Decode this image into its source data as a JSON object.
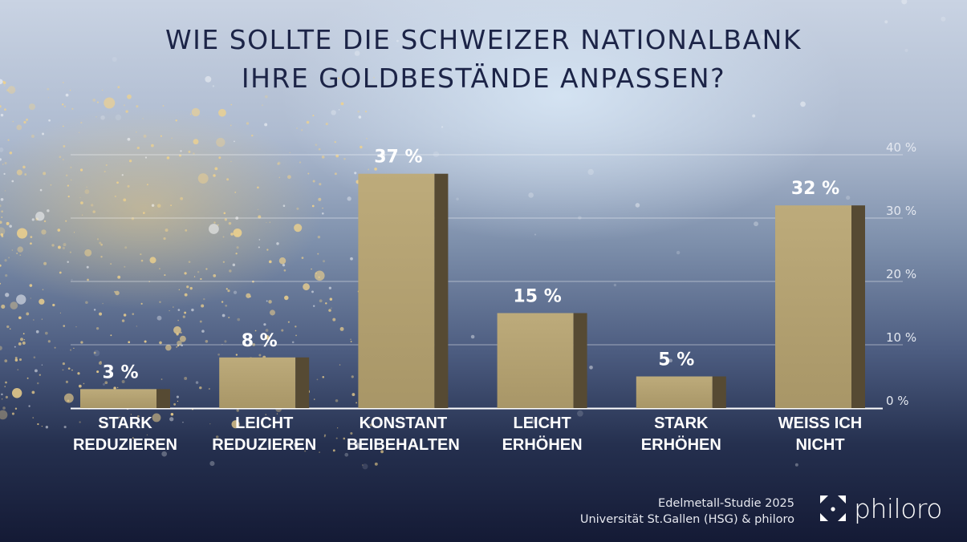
{
  "title": {
    "line1": "WIE SOLLTE DIE SCHWEIZER NATIONALBANK",
    "line2": "IHRE GOLDBESTÄNDE ANPASSEN?"
  },
  "colors": {
    "bar_front": "#b9a878",
    "bar_side": "#564a33",
    "title": "#1c2447",
    "text": "#ffffff"
  },
  "chart_data": {
    "type": "bar",
    "title": "WIE SOLLTE DIE SCHWEIZER NATIONALBANK IHRE GOLDBESTÄNDE ANPASSEN?",
    "categories": [
      [
        "STARK",
        "REDUZIEREN"
      ],
      [
        "LEICHT",
        "REDUZIEREN"
      ],
      [
        "KONSTANT",
        "BEIBEHALTEN"
      ],
      [
        "LEICHT",
        "ERHÖHEN"
      ],
      [
        "STARK",
        "ERHÖHEN"
      ],
      [
        "WEISS ICH",
        "NICHT"
      ]
    ],
    "values": [
      3,
      8,
      37,
      15,
      5,
      32
    ],
    "data_labels": [
      "3 %",
      "8 %",
      "37 %",
      "15 %",
      "5 %",
      "32 %"
    ],
    "xlabel": "",
    "ylabel": "",
    "ylim": [
      0,
      40
    ],
    "yticks": [
      0,
      10,
      20,
      30,
      40
    ],
    "ytick_labels": [
      "0 %",
      "10 %",
      "20 %",
      "30 %",
      "40 %"
    ],
    "y_axis_side": "right",
    "grid": true,
    "legend": "none"
  },
  "footer": {
    "line1": "Edelmetall-Studie 2025",
    "line2": "Universität St.Gallen (HSG) & philoro"
  },
  "logo": {
    "text": "philoro",
    "icon": "bracket-dot-logo-icon"
  }
}
